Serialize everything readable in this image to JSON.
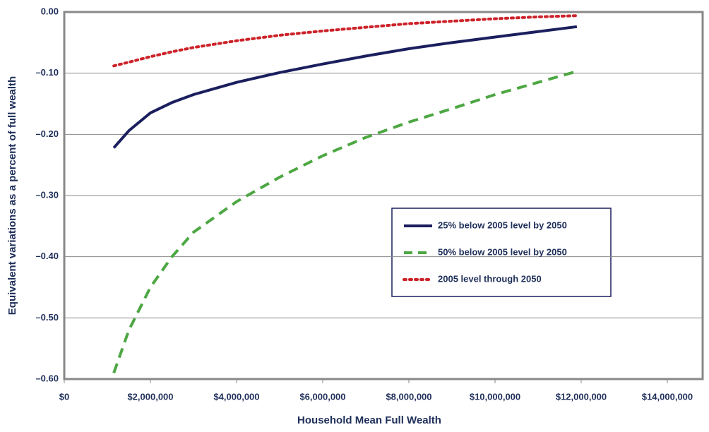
{
  "chart_data": {
    "type": "line",
    "x_label": "Household Mean Full Wealth",
    "y_label": "Equivalent variations as a percent of full wealth",
    "x": [
      1150000,
      1500000,
      2000000,
      2500000,
      3000000,
      4000000,
      5000000,
      6000000,
      7000000,
      8000000,
      9000000,
      10000000,
      11000000,
      11900000
    ],
    "series": [
      {
        "name": "25% below 2005 level by 2050",
        "color": "#1b1f5e",
        "style": "solid",
        "values": [
          -0.222,
          -0.194,
          -0.165,
          -0.148,
          -0.135,
          -0.115,
          -0.099,
          -0.085,
          -0.072,
          -0.06,
          -0.05,
          -0.041,
          -0.032,
          -0.024
        ]
      },
      {
        "name": "50% below 2005 level by 2050",
        "color": "#4da743",
        "style": "dashed",
        "values": [
          -0.59,
          -0.52,
          -0.45,
          -0.4,
          -0.36,
          -0.31,
          -0.27,
          -0.235,
          -0.205,
          -0.18,
          -0.158,
          -0.135,
          -0.115,
          -0.097
        ]
      },
      {
        "name": "2005 level through 2050",
        "color": "#cc2229",
        "style": "dotted",
        "values": [
          -0.088,
          -0.082,
          -0.073,
          -0.065,
          -0.058,
          -0.047,
          -0.038,
          -0.031,
          -0.025,
          -0.019,
          -0.015,
          -0.011,
          -0.008,
          -0.006
        ]
      }
    ],
    "xlim": [
      0,
      14000000
    ],
    "xticks": [
      {
        "value": 0,
        "label": "$0"
      },
      {
        "value": 2000000,
        "label": "$2,000,000"
      },
      {
        "value": 4000000,
        "label": "$4,000,000"
      },
      {
        "value": 6000000,
        "label": "$6,000,000"
      },
      {
        "value": 8000000,
        "label": "$8,000,000"
      },
      {
        "value": 10000000,
        "label": "$10,000,000"
      },
      {
        "value": 12000000,
        "label": "$12,000,000"
      },
      {
        "value": 14000000,
        "label": "$14,000,000"
      }
    ],
    "ylim": [
      -0.6,
      0
    ],
    "yticks": [
      {
        "value": 0,
        "label": "0.00"
      },
      {
        "value": -0.1,
        "label": "–0.10"
      },
      {
        "value": -0.2,
        "label": "–0.20"
      },
      {
        "value": -0.3,
        "label": "–0.30"
      },
      {
        "value": -0.4,
        "label": "–0.40"
      },
      {
        "value": -0.5,
        "label": "–0.50"
      },
      {
        "value": -0.6,
        "label": "–0.60"
      }
    ],
    "grid": true
  }
}
